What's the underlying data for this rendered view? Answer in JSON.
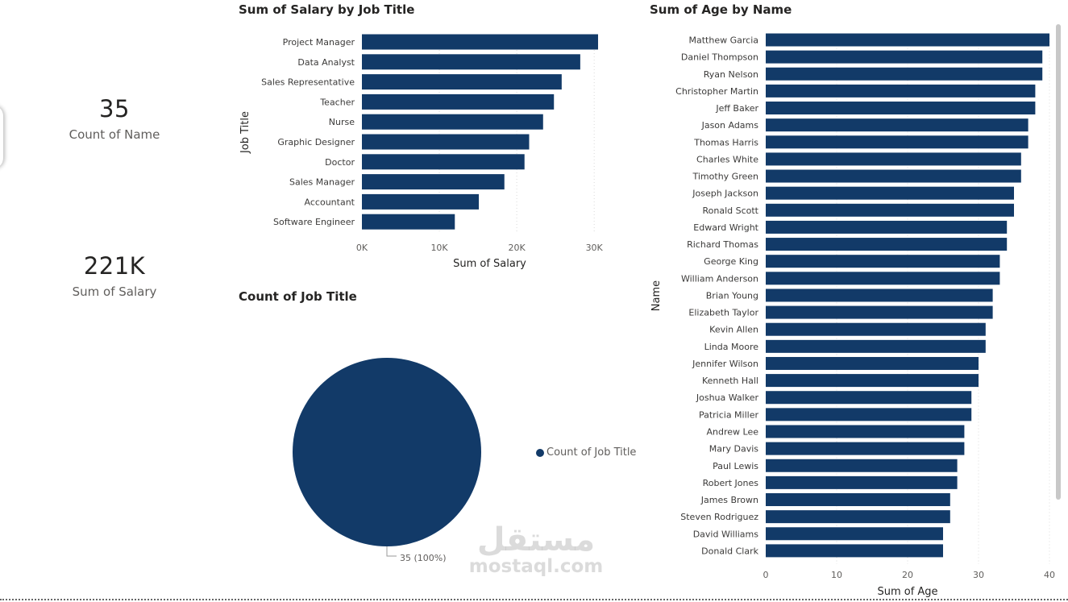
{
  "cards": [
    {
      "value": "35",
      "label": "Count of Name"
    },
    {
      "value": "221K",
      "label": "Sum of Salary"
    }
  ],
  "watermark": {
    "arabic": "مستقل",
    "latin": "mostaql.com"
  },
  "colors": {
    "bar": "#123a68",
    "grid": "#d9d9d9"
  },
  "chart_data": [
    {
      "type": "bar",
      "orientation": "horizontal",
      "title": "Sum of Salary by Job Title",
      "xlabel": "Sum of Salary",
      "ylabel": "Job Title",
      "categories": [
        "Project Manager",
        "Data Analyst",
        "Sales Representative",
        "Teacher",
        "Nurse",
        "Graphic Designer",
        "Doctor",
        "Sales Manager",
        "Accountant",
        "Software Engineer"
      ],
      "values": [
        30500,
        28200,
        25800,
        24800,
        23400,
        21600,
        21000,
        18400,
        15100,
        12000
      ],
      "xlim": [
        0,
        33000
      ],
      "ticks": [
        0,
        10000,
        20000,
        30000
      ],
      "tick_labels": [
        "0K",
        "10K",
        "20K",
        "30K"
      ],
      "grid": true
    },
    {
      "type": "pie",
      "title": "Count of Job Title",
      "legend": [
        "Count of Job Title"
      ],
      "legend_position": "right",
      "values": [
        35
      ],
      "data_labels": [
        "35 (100%)"
      ]
    },
    {
      "type": "bar",
      "orientation": "horizontal",
      "title": "Sum of Age by Name",
      "xlabel": "Sum of Age",
      "ylabel": "Name",
      "categories": [
        "Matthew Garcia",
        "Daniel Thompson",
        "Ryan Nelson",
        "Christopher Martin",
        "Jeff Baker",
        "Jason Adams",
        "Thomas Harris",
        "Charles White",
        "Timothy Green",
        "Joseph Jackson",
        "Ronald Scott",
        "Edward Wright",
        "Richard Thomas",
        "George King",
        "William Anderson",
        "Brian Young",
        "Elizabeth Taylor",
        "Kevin Allen",
        "Linda Moore",
        "Jennifer Wilson",
        "Kenneth Hall",
        "Joshua Walker",
        "Patricia Miller",
        "Andrew Lee",
        "Mary Davis",
        "Paul Lewis",
        "Robert Jones",
        "James Brown",
        "Steven Rodriguez",
        "David Williams",
        "Donald Clark"
      ],
      "values": [
        40,
        39,
        39,
        38,
        38,
        37,
        37,
        36,
        36,
        35,
        35,
        34,
        34,
        33,
        33,
        32,
        32,
        31,
        31,
        30,
        30,
        29,
        29,
        28,
        28,
        27,
        27,
        26,
        26,
        25,
        25
      ],
      "xlim": [
        0,
        40
      ],
      "ticks": [
        0,
        10,
        20,
        30,
        40
      ],
      "tick_labels": [
        "0",
        "10",
        "20",
        "30",
        "40"
      ],
      "grid": true
    }
  ]
}
